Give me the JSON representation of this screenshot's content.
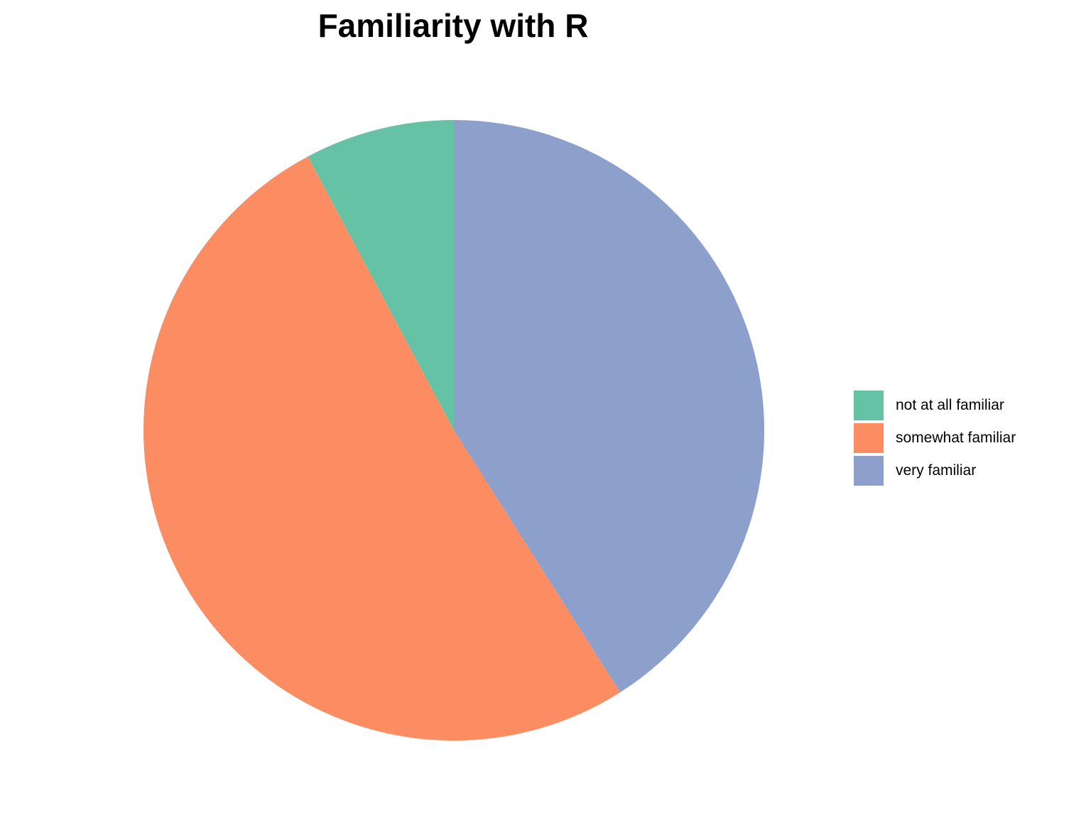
{
  "chart_data": {
    "type": "pie",
    "title": "Familiarity with R",
    "categories": [
      "not at all familiar",
      "somewhat familiar",
      "very familiar"
    ],
    "values": [
      7.8,
      51.2,
      41.0
    ],
    "colors": [
      "#66c2a5",
      "#fc8d62",
      "#8da0cb"
    ],
    "start_angle_deg": 0,
    "direction": "counterclockwise",
    "legend_position": "right"
  }
}
